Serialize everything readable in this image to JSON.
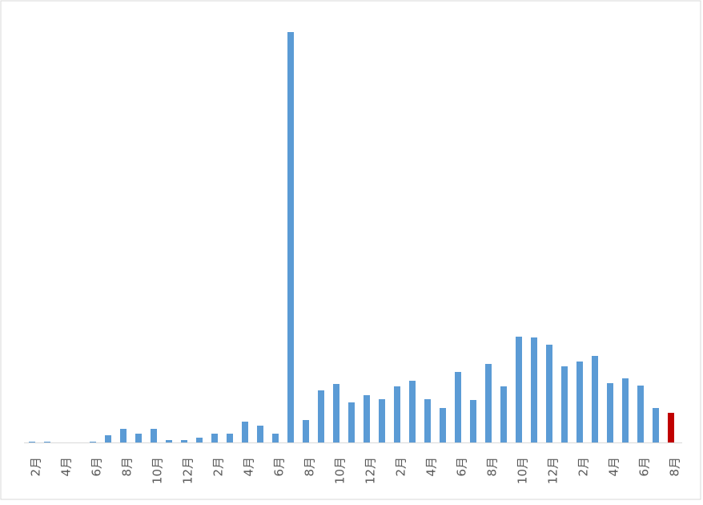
{
  "chart_data": {
    "type": "bar",
    "categories": [
      "2月",
      null,
      "4月",
      null,
      "6月",
      null,
      "8月",
      null,
      "10月",
      null,
      "12月",
      null,
      "2月",
      null,
      "4月",
      null,
      "6月",
      null,
      "8月",
      null,
      "10月",
      null,
      "12月",
      null,
      "2月",
      null,
      "4月",
      null,
      "6月",
      null,
      "8月",
      null,
      "10月",
      null,
      "12月",
      null,
      "2月",
      null,
      "4月",
      null,
      "6月",
      null,
      "8月"
    ],
    "values": [
      1,
      1,
      0,
      0,
      1,
      9,
      17,
      11,
      17,
      3,
      3,
      6,
      11,
      11,
      26,
      21,
      11,
      512,
      28,
      65,
      73,
      50,
      59,
      54,
      70,
      77,
      54,
      43,
      88,
      53,
      98,
      70,
      132,
      131,
      122,
      95,
      101,
      108,
      74,
      80,
      71,
      43,
      37
    ],
    "colors": [
      "#5b9bd5",
      "#5b9bd5",
      "#5b9bd5",
      "#5b9bd5",
      "#5b9bd5",
      "#5b9bd5",
      "#5b9bd5",
      "#5b9bd5",
      "#5b9bd5",
      "#5b9bd5",
      "#5b9bd5",
      "#5b9bd5",
      "#5b9bd5",
      "#5b9bd5",
      "#5b9bd5",
      "#5b9bd5",
      "#5b9bd5",
      "#5b9bd5",
      "#5b9bd5",
      "#5b9bd5",
      "#5b9bd5",
      "#5b9bd5",
      "#5b9bd5",
      "#5b9bd5",
      "#5b9bd5",
      "#5b9bd5",
      "#5b9bd5",
      "#5b9bd5",
      "#5b9bd5",
      "#5b9bd5",
      "#5b9bd5",
      "#5b9bd5",
      "#5b9bd5",
      "#5b9bd5",
      "#5b9bd5",
      "#5b9bd5",
      "#5b9bd5",
      "#5b9bd5",
      "#5b9bd5",
      "#5b9bd5",
      "#5b9bd5",
      "#5b9bd5",
      "#c00000"
    ],
    "ylim": [
      0,
      512
    ]
  }
}
